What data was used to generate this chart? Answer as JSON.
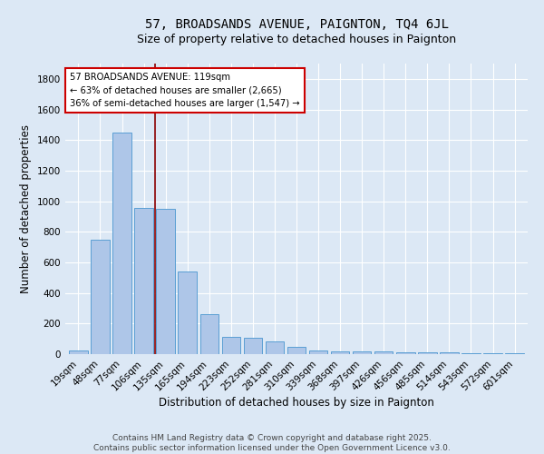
{
  "title": "57, BROADSANDS AVENUE, PAIGNTON, TQ4 6JL",
  "subtitle": "Size of property relative to detached houses in Paignton",
  "xlabel": "Distribution of detached houses by size in Paignton",
  "ylabel": "Number of detached properties",
  "bar_labels": [
    "19sqm",
    "48sqm",
    "77sqm",
    "106sqm",
    "135sqm",
    "165sqm",
    "194sqm",
    "223sqm",
    "252sqm",
    "281sqm",
    "310sqm",
    "339sqm",
    "368sqm",
    "397sqm",
    "426sqm",
    "456sqm",
    "485sqm",
    "514sqm",
    "543sqm",
    "572sqm",
    "601sqm"
  ],
  "bar_values": [
    22,
    750,
    1450,
    955,
    950,
    540,
    260,
    110,
    108,
    85,
    45,
    25,
    18,
    18,
    15,
    13,
    10,
    9,
    5,
    4,
    3
  ],
  "bar_color": "#aec6e8",
  "bar_edge_color": "#5a9fd4",
  "background_color": "#dce8f5",
  "grid_color": "#ffffff",
  "vline_color": "#8b0000",
  "annotation_text": "57 BROADSANDS AVENUE: 119sqm\n← 63% of detached houses are smaller (2,665)\n36% of semi-detached houses are larger (1,547) →",
  "annotation_box_color": "#ffffff",
  "annotation_box_edge": "#cc0000",
  "ylim": [
    0,
    1900
  ],
  "yticks": [
    0,
    200,
    400,
    600,
    800,
    1000,
    1200,
    1400,
    1600,
    1800
  ],
  "footer": "Contains HM Land Registry data © Crown copyright and database right 2025.\nContains public sector information licensed under the Open Government Licence v3.0.",
  "title_fontsize": 10,
  "subtitle_fontsize": 9,
  "label_fontsize": 8.5,
  "tick_fontsize": 7.5,
  "footer_fontsize": 6.5
}
